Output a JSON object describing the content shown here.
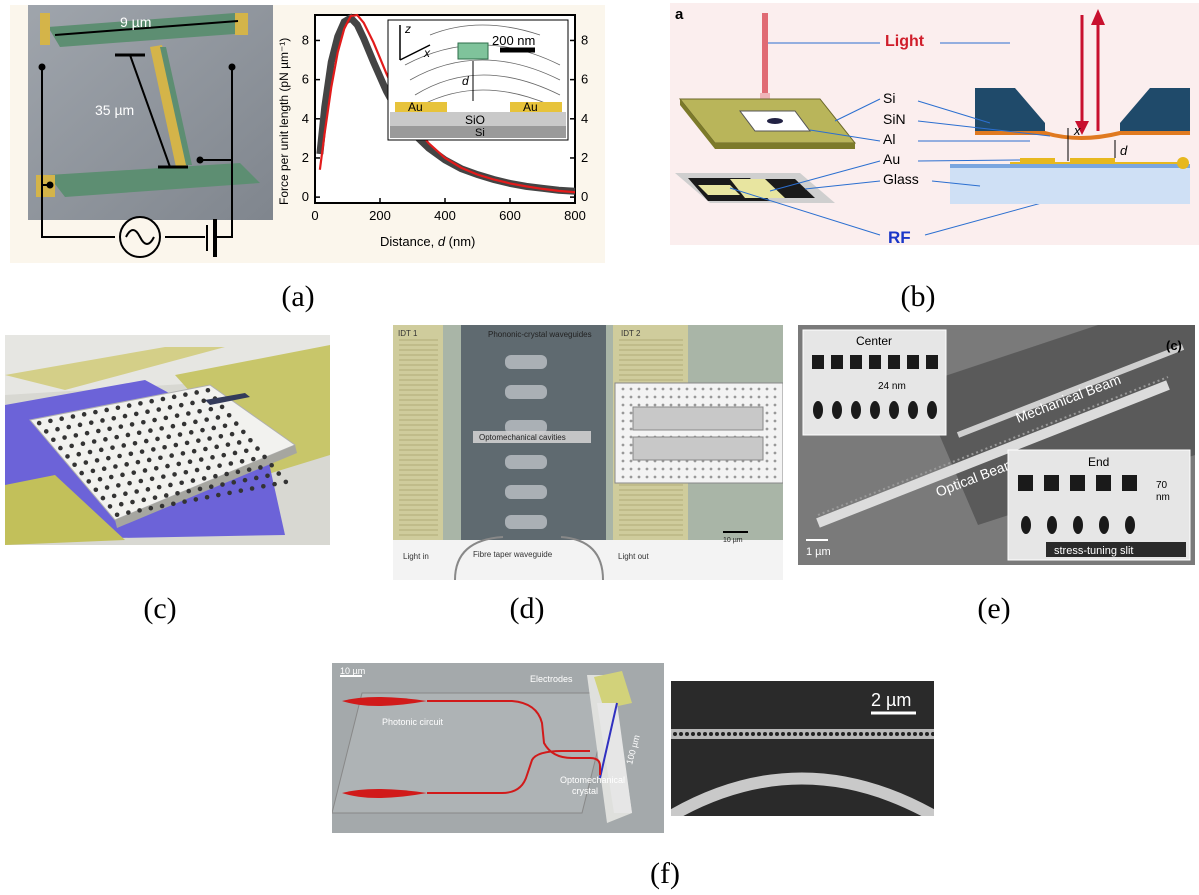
{
  "captions": {
    "a": "(a)",
    "b": "(b)",
    "c": "(c)",
    "d": "(d)",
    "e": "(e)",
    "f": "(f)"
  },
  "panel_a": {
    "sem": {
      "width_label": "9 µm",
      "length_label": "35 µm"
    },
    "inset": {
      "z": "z",
      "x": "x",
      "d": "d",
      "scale": "200 nm",
      "au_left": "Au",
      "au_right": "Au",
      "sio": "SiO",
      "si": "Si"
    },
    "chart_data": {
      "type": "line",
      "xlabel_prefix": "Distance, ",
      "xlabel_var": "d",
      "xlabel_suffix": " (nm)",
      "ylabel": "Force per unit length (pN µm⁻¹)",
      "xlim": [
        0,
        800
      ],
      "ylim": [
        -0.3,
        9.3
      ],
      "xticks": [
        0,
        200,
        400,
        600,
        800
      ],
      "yticks": [
        0,
        2,
        4,
        6,
        8
      ],
      "series": [
        {
          "color": "#444444",
          "x": [
            15,
            30,
            50,
            70,
            90,
            110,
            130,
            150,
            180,
            220,
            260,
            300,
            350,
            400,
            450,
            500,
            550,
            600,
            650,
            700,
            750,
            800
          ],
          "y": [
            2.2,
            4.6,
            6.9,
            8.2,
            8.95,
            9.15,
            8.8,
            8.1,
            6.9,
            5.4,
            4.2,
            3.3,
            2.5,
            1.9,
            1.45,
            1.15,
            0.9,
            0.7,
            0.55,
            0.45,
            0.35,
            0.3
          ]
        },
        {
          "color": "#e21b1b",
          "x": [
            15,
            30,
            50,
            70,
            90,
            110,
            130,
            150,
            180,
            220,
            260,
            300,
            350,
            400,
            450,
            500,
            550,
            600,
            650,
            700,
            750,
            800
          ],
          "y": [
            1.4,
            3.3,
            5.6,
            7.4,
            8.6,
            9.25,
            9.3,
            8.9,
            7.9,
            6.3,
            4.9,
            3.75,
            2.75,
            2.0,
            1.5,
            1.15,
            0.9,
            0.7,
            0.55,
            0.42,
            0.32,
            0.25
          ]
        }
      ]
    }
  },
  "panel_b": {
    "tag": "a",
    "light": "Light",
    "si": "Si",
    "sin": "SiN",
    "al": "Al",
    "au": "Au",
    "glass": "Glass",
    "rf": "RF",
    "x": "x",
    "d": "d"
  },
  "panel_d": {
    "idt1": "IDT 1",
    "idt2": "IDT 2",
    "phononic": "Phononic-crystal waveguides",
    "cavities": "Optomechanical cavities",
    "scale": "10 µm",
    "light_in": "Light in",
    "light_out": "Light out",
    "fibre": "Fibre taper waveguide"
  },
  "panel_e": {
    "tag": "(c)",
    "center": "Center",
    "gap": "24 nm",
    "mech": "Mechanical Beam",
    "optical": "Optical Beam",
    "end": "End",
    "gap_end_1": "70",
    "gap_end_2": "nm",
    "slit": "stress-tuning slit",
    "scale": "1 µm"
  },
  "panel_f": {
    "scale": "10 µm",
    "electrodes": "Electrodes",
    "photonic": "Photonic circuit",
    "length": "100 µm",
    "omc_1": "Optomechanical",
    "omc_2": "crystal",
    "scale_right": "2 µm"
  }
}
